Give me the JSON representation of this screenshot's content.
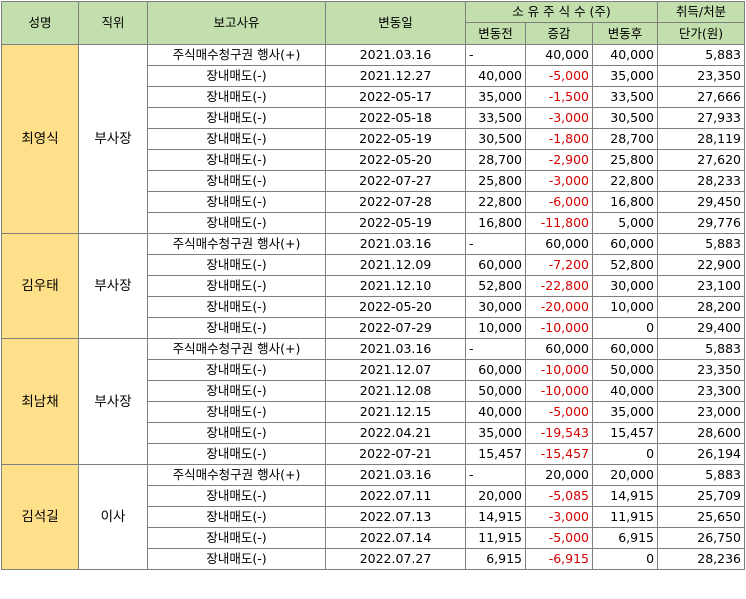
{
  "headers": {
    "name": "성명",
    "position": "직위",
    "reason": "보고사유",
    "date": "변동일",
    "shares_group": "소 유 주 식 수 (주)",
    "before": "변동전",
    "change": "증감",
    "after": "변동후",
    "price_top": "취득/처분",
    "price_bottom": "단가(원)"
  },
  "groups": [
    {
      "name": "최영식",
      "position": "부사장",
      "rows": [
        {
          "reason": "주식매수청구권 행사(+)",
          "date": "2021.03.16",
          "before": "-",
          "change": "40,000",
          "after": "40,000",
          "price": "5,883"
        },
        {
          "reason": "장내매도(-)",
          "date": "2021.12.27",
          "before": "40,000",
          "change": "-5,000",
          "after": "35,000",
          "price": "23,350"
        },
        {
          "reason": "장내매도(-)",
          "date": "2022-05-17",
          "before": "35,000",
          "change": "-1,500",
          "after": "33,500",
          "price": "27,666"
        },
        {
          "reason": "장내매도(-)",
          "date": "2022-05-18",
          "before": "33,500",
          "change": "-3,000",
          "after": "30,500",
          "price": "27,933"
        },
        {
          "reason": "장내매도(-)",
          "date": "2022-05-19",
          "before": "30,500",
          "change": "-1,800",
          "after": "28,700",
          "price": "28,119"
        },
        {
          "reason": "장내매도(-)",
          "date": "2022-05-20",
          "before": "28,700",
          "change": "-2,900",
          "after": "25,800",
          "price": "27,620"
        },
        {
          "reason": "장내매도(-)",
          "date": "2022-07-27",
          "before": "25,800",
          "change": "-3,000",
          "after": "22,800",
          "price": "28,233"
        },
        {
          "reason": "장내매도(-)",
          "date": "2022-07-28",
          "before": "22,800",
          "change": "-6,000",
          "after": "16,800",
          "price": "29,450"
        },
        {
          "reason": "장내매도(-)",
          "date": "2022-05-19",
          "before": "16,800",
          "change": "-11,800",
          "after": "5,000",
          "price": "29,776"
        }
      ]
    },
    {
      "name": "김우태",
      "position": "부사장",
      "rows": [
        {
          "reason": "주식매수청구권 행사(+)",
          "date": "2021.03.16",
          "before": "-",
          "change": "60,000",
          "after": "60,000",
          "price": "5,883"
        },
        {
          "reason": "장내매도(-)",
          "date": "2021.12.09",
          "before": "60,000",
          "change": "-7,200",
          "after": "52,800",
          "price": "22,900"
        },
        {
          "reason": "장내매도(-)",
          "date": "2021.12.10",
          "before": "52,800",
          "change": "-22,800",
          "after": "30,000",
          "price": "23,100"
        },
        {
          "reason": "장내매도(-)",
          "date": "2022-05-20",
          "before": "30,000",
          "change": "-20,000",
          "after": "10,000",
          "price": "28,200"
        },
        {
          "reason": "장내매도(-)",
          "date": "2022-07-29",
          "before": "10,000",
          "change": "-10,000",
          "after": "0",
          "price": "29,400"
        }
      ]
    },
    {
      "name": "최남채",
      "position": "부사장",
      "rows": [
        {
          "reason": "주식매수청구권 행사(+)",
          "date": "2021.03.16",
          "before": "-",
          "change": "60,000",
          "after": "60,000",
          "price": "5,883"
        },
        {
          "reason": "장내매도(-)",
          "date": "2021.12.07",
          "before": "60,000",
          "change": "-10,000",
          "after": "50,000",
          "price": "23,350"
        },
        {
          "reason": "장내매도(-)",
          "date": "2021.12.08",
          "before": "50,000",
          "change": "-10,000",
          "after": "40,000",
          "price": "23,300"
        },
        {
          "reason": "장내매도(-)",
          "date": "2021.12.15",
          "before": "40,000",
          "change": "-5,000",
          "after": "35,000",
          "price": "23,000"
        },
        {
          "reason": "장내매도(-)",
          "date": "2022.04.21",
          "before": "35,000",
          "change": "-19,543",
          "after": "15,457",
          "price": "28,600"
        },
        {
          "reason": "장내매도(-)",
          "date": "2022-07-21",
          "before": "15,457",
          "change": "-15,457",
          "after": "0",
          "price": "26,194"
        }
      ]
    },
    {
      "name": "김석길",
      "position": "이사",
      "rows": [
        {
          "reason": "주식매수청구권 행사(+)",
          "date": "2021.03.16",
          "before": "-",
          "change": "20,000",
          "after": "20,000",
          "price": "5,883"
        },
        {
          "reason": "장내매도(-)",
          "date": "2022.07.11",
          "before": "20,000",
          "change": "-5,085",
          "after": "14,915",
          "price": "25,709"
        },
        {
          "reason": "장내매도(-)",
          "date": "2022.07.13",
          "before": "14,915",
          "change": "-3,000",
          "after": "11,915",
          "price": "25,650"
        },
        {
          "reason": "장내매도(-)",
          "date": "2022.07.14",
          "before": "11,915",
          "change": "-5,000",
          "after": "6,915",
          "price": "26,750"
        },
        {
          "reason": "장내매도(-)",
          "date": "2022.07.27",
          "before": "6,915",
          "change": "-6,915",
          "after": "0",
          "price": "28,236"
        }
      ]
    }
  ]
}
